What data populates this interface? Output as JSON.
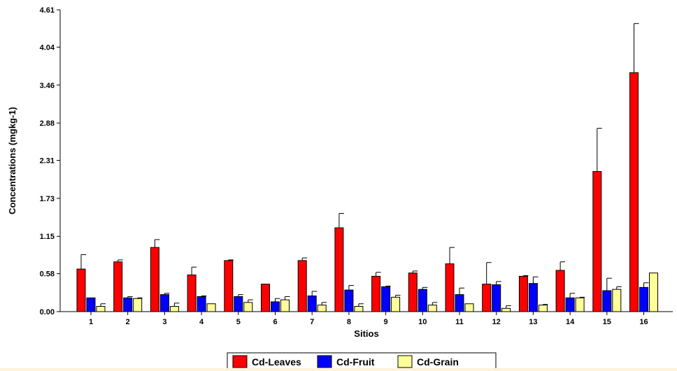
{
  "chart_data": {
    "type": "bar",
    "xlabel": "Sitios",
    "ylabel": "Concentrations (mgkg-1)",
    "ylim": [
      0,
      4.61
    ],
    "yticks": [
      "0.00",
      "0.58",
      "1.15",
      "1.73",
      "2.31",
      "2.88",
      "3.46",
      "4.04",
      "4.61"
    ],
    "categories": [
      "1",
      "2",
      "3",
      "4",
      "5",
      "6",
      "7",
      "8",
      "9",
      "10",
      "11",
      "12",
      "13",
      "14",
      "15",
      "16"
    ],
    "series": [
      {
        "name": "Cd-Leaves",
        "color": "#ff0000",
        "values": [
          0.65,
          0.76,
          0.98,
          0.56,
          0.78,
          0.42,
          0.78,
          1.28,
          0.54,
          0.59,
          0.73,
          0.42,
          0.54,
          0.63,
          2.14,
          3.65
        ],
        "errors": [
          0.22,
          0.03,
          0.12,
          0.12,
          0.01,
          0.0,
          0.04,
          0.22,
          0.06,
          0.03,
          0.25,
          0.33,
          0.01,
          0.13,
          0.66,
          0.75
        ]
      },
      {
        "name": "Cd-Fruit",
        "color": "#0000ff",
        "values": [
          0.21,
          0.21,
          0.26,
          0.23,
          0.23,
          0.15,
          0.24,
          0.33,
          0.38,
          0.34,
          0.26,
          0.41,
          0.43,
          0.21,
          0.32,
          0.37
        ],
        "errors": [
          0.0,
          0.02,
          0.02,
          0.01,
          0.03,
          0.05,
          0.07,
          0.07,
          0.01,
          0.03,
          0.1,
          0.05,
          0.1,
          0.07,
          0.19,
          0.07
        ]
      },
      {
        "name": "Cd-Grain",
        "color": "#ffff99",
        "values": [
          0.08,
          0.2,
          0.08,
          0.12,
          0.14,
          0.18,
          0.1,
          0.08,
          0.22,
          0.1,
          0.12,
          0.05,
          0.1,
          0.21,
          0.34,
          0.59
        ],
        "errors": [
          0.04,
          0.01,
          0.05,
          0.0,
          0.04,
          0.05,
          0.04,
          0.04,
          0.03,
          0.04,
          0.0,
          0.04,
          0.01,
          0.01,
          0.04,
          0.0
        ]
      }
    ],
    "grid": false,
    "legend_position": "bottom"
  }
}
